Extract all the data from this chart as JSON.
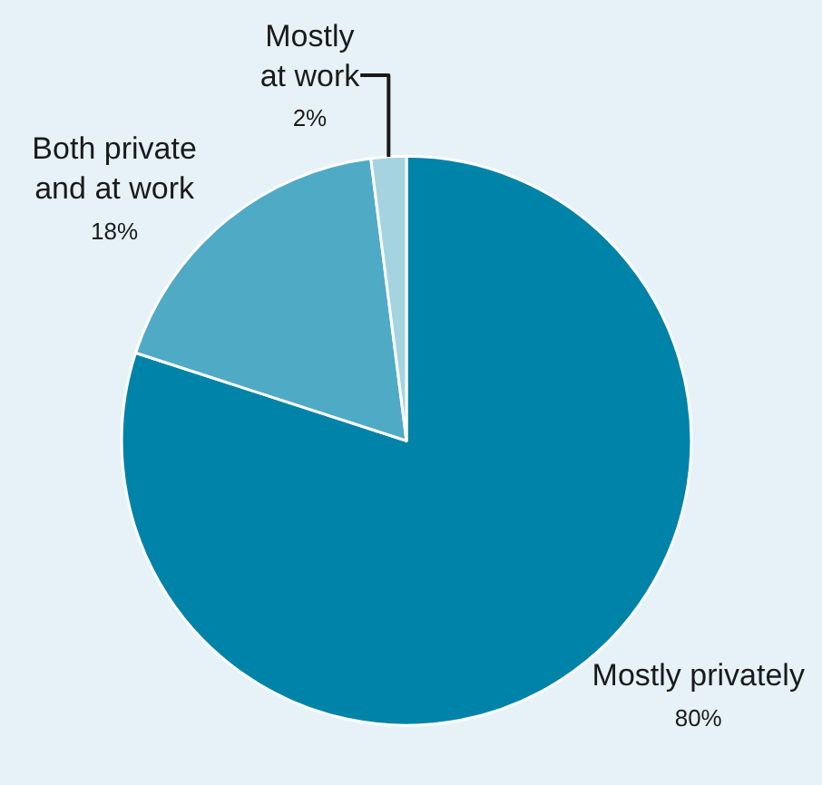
{
  "chart_data": {
    "type": "pie",
    "categories": [
      "Mostly privately",
      "Both private\nand at work",
      "Mostly\nat work"
    ],
    "values": [
      80,
      18,
      2
    ],
    "value_labels": [
      "80%",
      "18%",
      "2%"
    ],
    "colors": [
      "#0083a8",
      "#4faac6",
      "#a5d4e0"
    ],
    "legend": false
  }
}
